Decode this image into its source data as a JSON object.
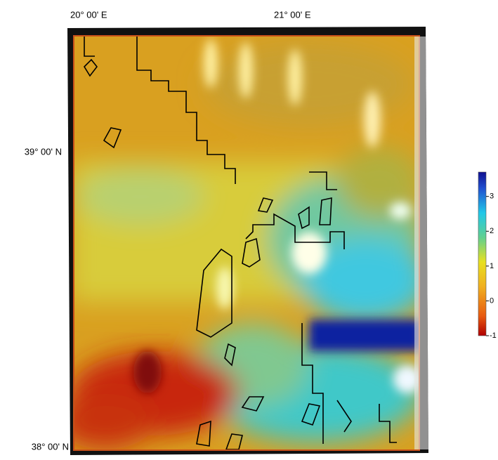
{
  "map": {
    "x_labels": [
      "20° 00' E",
      "21° 00' E"
    ],
    "y_labels": [
      "39° 00' N",
      "38° 00' N"
    ],
    "colorbar": {
      "lim": [
        -1,
        3.7
      ],
      "ticks": [
        -1,
        0,
        1,
        2,
        3
      ]
    }
  }
}
